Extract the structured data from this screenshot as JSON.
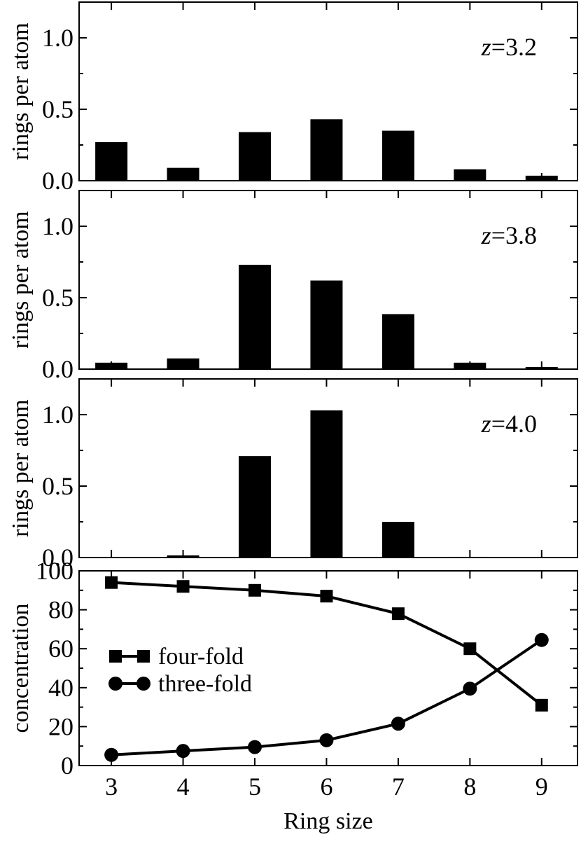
{
  "chart_data": [
    {
      "type": "bar",
      "annotation": {
        "var": "z",
        "value": "=3.2"
      },
      "ylabel": "rings per atom",
      "xlabel": "",
      "categories": [
        3,
        4,
        5,
        6,
        7,
        8,
        9
      ],
      "values": [
        0.27,
        0.09,
        0.34,
        0.43,
        0.35,
        0.08,
        0.035
      ],
      "ylim": [
        0,
        1.25
      ],
      "yticks": [
        "0.0",
        "0.5",
        "1.0"
      ],
      "xlim": [
        2.55,
        9.5
      ],
      "grid": false,
      "bar_color": "#000000"
    },
    {
      "type": "bar",
      "annotation": {
        "var": "z",
        "value": "=3.8"
      },
      "ylabel": "rings per atom",
      "xlabel": "",
      "categories": [
        3,
        4,
        5,
        6,
        7,
        8,
        9
      ],
      "values": [
        0.045,
        0.075,
        0.73,
        0.62,
        0.385,
        0.045,
        0.015
      ],
      "ylim": [
        0,
        1.25
      ],
      "yticks": [
        "0.0",
        "0.5",
        "1.0"
      ],
      "xlim": [
        2.55,
        9.5
      ],
      "grid": false,
      "bar_color": "#000000"
    },
    {
      "type": "bar",
      "annotation": {
        "var": "z",
        "value": "=4.0"
      },
      "ylabel": "rings per atom",
      "xlabel": "",
      "categories": [
        3,
        4,
        5,
        6,
        7,
        8,
        9
      ],
      "values": [
        0.0,
        0.015,
        0.71,
        1.03,
        0.25,
        0.005,
        0.0
      ],
      "ylim": [
        0,
        1.25
      ],
      "yticks": [
        "0.0",
        "0.5",
        "1.0"
      ],
      "xlim": [
        2.55,
        9.5
      ],
      "grid": false,
      "bar_color": "#000000"
    },
    {
      "type": "line",
      "ylabel": "concentration",
      "xlabel": "Ring size",
      "x": [
        3,
        4,
        5,
        6,
        7,
        8,
        9
      ],
      "xticks": [
        "3",
        "4",
        "5",
        "6",
        "7",
        "8",
        "9"
      ],
      "ylim": [
        0,
        100
      ],
      "yticks": [
        "0",
        "20",
        "40",
        "60",
        "80",
        "100"
      ],
      "xlim": [
        2.55,
        9.5
      ],
      "grid": false,
      "legend_position": "center-left",
      "series": [
        {
          "name": "four-fold",
          "marker": "square",
          "values": [
            94,
            92,
            90,
            87,
            78,
            60,
            31
          ]
        },
        {
          "name": "three-fold",
          "marker": "circle",
          "values": [
            5.5,
            7.5,
            9.5,
            13,
            21.5,
            39.5,
            64.5
          ]
        }
      ]
    }
  ]
}
